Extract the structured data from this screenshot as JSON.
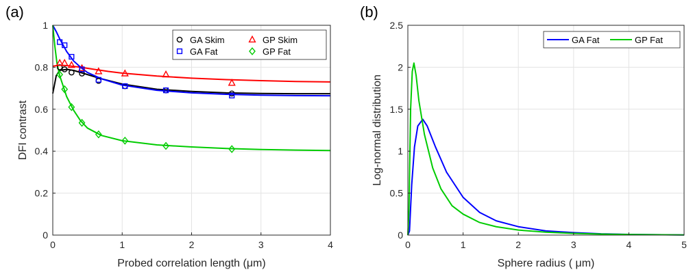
{
  "chart_data": [
    {
      "panel_label": "(a)",
      "type": "line",
      "xlabel": "Probed correlation length (μm)",
      "ylabel": "DFI contrast",
      "xlim": [
        0,
        4
      ],
      "ylim": [
        0,
        1
      ],
      "xticks": [
        0,
        1,
        2,
        3,
        4
      ],
      "yticks": [
        0,
        0.2,
        0.4,
        0.6,
        0.8,
        1
      ],
      "ytick_labels": [
        "0",
        "0.2",
        "0.4",
        "0.6",
        "0.8",
        "1"
      ],
      "grid": true,
      "legend_position": "top-right",
      "legend": [
        {
          "label": "GA Skim",
          "color": "#000000",
          "marker": "circle"
        },
        {
          "label": "GP Skim",
          "color": "#ff0000",
          "marker": "triangle"
        },
        {
          "label": "GA Fat",
          "color": "#0000ff",
          "marker": "square"
        },
        {
          "label": "GP Fat",
          "color": "#00cc00",
          "marker": "diamond"
        }
      ],
      "series": [
        {
          "name": "GA Skim",
          "color": "#000000",
          "marker": "circle",
          "points": [
            [
              0.1,
              0.8
            ],
            [
              0.17,
              0.79
            ],
            [
              0.27,
              0.775
            ],
            [
              0.42,
              0.77
            ],
            [
              0.66,
              0.735
            ],
            [
              1.04,
              0.71
            ],
            [
              1.63,
              0.69
            ],
            [
              2.58,
              0.675
            ]
          ],
          "fit": [
            [
              0,
              0.675
            ],
            [
              0.05,
              0.76
            ],
            [
              0.1,
              0.785
            ],
            [
              0.2,
              0.79
            ],
            [
              0.3,
              0.785
            ],
            [
              0.5,
              0.765
            ],
            [
              0.7,
              0.745
            ],
            [
              1.0,
              0.72
            ],
            [
              1.5,
              0.695
            ],
            [
              2.0,
              0.685
            ],
            [
              2.5,
              0.678
            ],
            [
              3.0,
              0.675
            ],
            [
              3.5,
              0.674
            ],
            [
              4.0,
              0.674
            ]
          ]
        },
        {
          "name": "GP Skim",
          "color": "#ff0000",
          "marker": "triangle",
          "points": [
            [
              0.1,
              0.82
            ],
            [
              0.17,
              0.82
            ],
            [
              0.27,
              0.81
            ],
            [
              0.42,
              0.795
            ],
            [
              0.66,
              0.78
            ],
            [
              1.04,
              0.77
            ],
            [
              1.63,
              0.765
            ],
            [
              2.58,
              0.725
            ]
          ],
          "fit": [
            [
              0,
              0.805
            ],
            [
              0.1,
              0.81
            ],
            [
              0.2,
              0.808
            ],
            [
              0.4,
              0.8
            ],
            [
              0.6,
              0.79
            ],
            [
              0.8,
              0.78
            ],
            [
              1.0,
              0.772
            ],
            [
              1.5,
              0.758
            ],
            [
              2.0,
              0.748
            ],
            [
              2.5,
              0.741
            ],
            [
              3.0,
              0.736
            ],
            [
              3.5,
              0.732
            ],
            [
              4.0,
              0.73
            ]
          ]
        },
        {
          "name": "GA Fat",
          "color": "#0000ff",
          "marker": "square",
          "points": [
            [
              0.1,
              0.92
            ],
            [
              0.17,
              0.905
            ],
            [
              0.27,
              0.85
            ],
            [
              0.42,
              0.79
            ],
            [
              0.66,
              0.74
            ],
            [
              1.04,
              0.71
            ],
            [
              1.63,
              0.69
            ],
            [
              2.58,
              0.665
            ]
          ],
          "fit": [
            [
              0,
              1.0
            ],
            [
              0.05,
              0.97
            ],
            [
              0.1,
              0.935
            ],
            [
              0.2,
              0.875
            ],
            [
              0.3,
              0.83
            ],
            [
              0.4,
              0.8
            ],
            [
              0.5,
              0.775
            ],
            [
              0.7,
              0.745
            ],
            [
              1.0,
              0.715
            ],
            [
              1.5,
              0.69
            ],
            [
              2.0,
              0.678
            ],
            [
              2.5,
              0.671
            ],
            [
              3.0,
              0.667
            ],
            [
              3.5,
              0.665
            ],
            [
              4.0,
              0.664
            ]
          ]
        },
        {
          "name": "GP Fat",
          "color": "#00cc00",
          "marker": "diamond",
          "points": [
            [
              0.1,
              0.765
            ],
            [
              0.17,
              0.695
            ],
            [
              0.27,
              0.61
            ],
            [
              0.42,
              0.535
            ],
            [
              0.66,
              0.48
            ],
            [
              1.04,
              0.45
            ],
            [
              1.63,
              0.425
            ],
            [
              2.58,
              0.41
            ]
          ],
          "fit": [
            [
              0,
              1.0
            ],
            [
              0.03,
              0.9
            ],
            [
              0.06,
              0.82
            ],
            [
              0.1,
              0.76
            ],
            [
              0.15,
              0.71
            ],
            [
              0.2,
              0.66
            ],
            [
              0.3,
              0.595
            ],
            [
              0.4,
              0.545
            ],
            [
              0.5,
              0.51
            ],
            [
              0.7,
              0.475
            ],
            [
              1.0,
              0.45
            ],
            [
              1.5,
              0.43
            ],
            [
              2.0,
              0.42
            ],
            [
              2.5,
              0.413
            ],
            [
              3.0,
              0.408
            ],
            [
              3.5,
              0.405
            ],
            [
              4.0,
              0.403
            ]
          ]
        }
      ]
    },
    {
      "panel_label": "(b)",
      "type": "line",
      "xlabel": "Sphere radius ( μm)",
      "ylabel": "Log-normal distribution",
      "xlim": [
        0,
        5
      ],
      "ylim": [
        0,
        2.5
      ],
      "xticks": [
        0,
        1,
        2,
        3,
        4,
        5
      ],
      "yticks": [
        0,
        0.5,
        1,
        1.5,
        2,
        2.5
      ],
      "ytick_labels": [
        "0",
        "0.5",
        "1",
        "1.5",
        "2",
        "2.5"
      ],
      "grid": true,
      "legend_position": "top-right",
      "legend": [
        {
          "label": "GA Fat",
          "color": "#0000ff"
        },
        {
          "label": "GP Fat",
          "color": "#00cc00"
        }
      ],
      "series": [
        {
          "name": "GA Fat",
          "color": "#0000ff",
          "points": [
            [
              0,
              0
            ],
            [
              0.03,
              0.05
            ],
            [
              0.07,
              0.6
            ],
            [
              0.12,
              1.05
            ],
            [
              0.18,
              1.3
            ],
            [
              0.27,
              1.38
            ],
            [
              0.35,
              1.3
            ],
            [
              0.5,
              1.05
            ],
            [
              0.7,
              0.75
            ],
            [
              1.0,
              0.45
            ],
            [
              1.3,
              0.27
            ],
            [
              1.6,
              0.17
            ],
            [
              2.0,
              0.1
            ],
            [
              2.5,
              0.05
            ],
            [
              3.0,
              0.03
            ],
            [
              3.5,
              0.015
            ],
            [
              4.0,
              0.008
            ],
            [
              5.0,
              0.002
            ]
          ]
        },
        {
          "name": "GP Fat",
          "color": "#00cc00",
          "points": [
            [
              0,
              0
            ],
            [
              0.02,
              0.3
            ],
            [
              0.05,
              1.5
            ],
            [
              0.08,
              1.95
            ],
            [
              0.11,
              2.05
            ],
            [
              0.15,
              1.9
            ],
            [
              0.2,
              1.6
            ],
            [
              0.3,
              1.2
            ],
            [
              0.45,
              0.8
            ],
            [
              0.6,
              0.55
            ],
            [
              0.8,
              0.35
            ],
            [
              1.0,
              0.25
            ],
            [
              1.3,
              0.15
            ],
            [
              1.6,
              0.1
            ],
            [
              2.0,
              0.06
            ],
            [
              2.5,
              0.035
            ],
            [
              3.0,
              0.02
            ],
            [
              3.5,
              0.012
            ],
            [
              4.0,
              0.007
            ],
            [
              5.0,
              0.002
            ]
          ]
        }
      ]
    }
  ]
}
